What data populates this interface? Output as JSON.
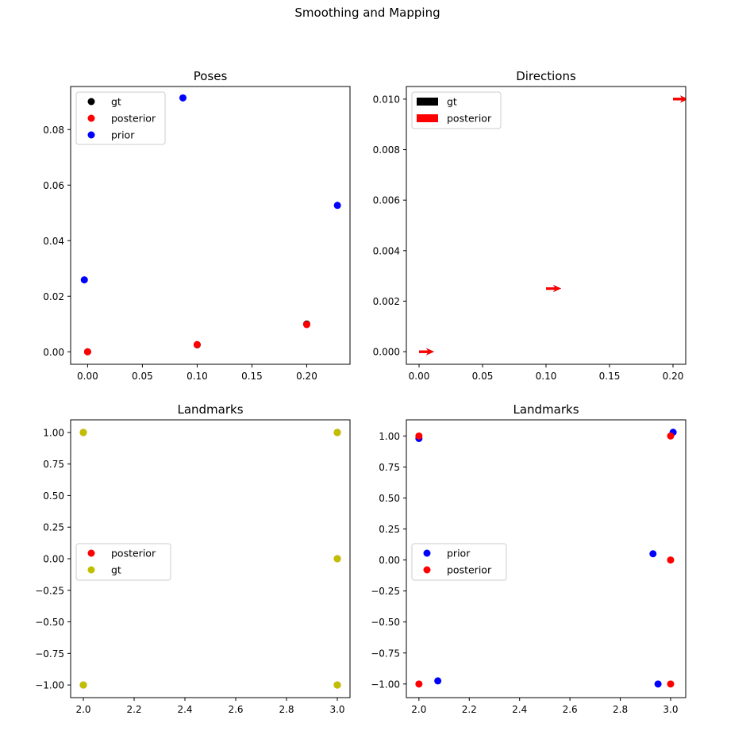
{
  "figure": {
    "suptitle": "Smoothing and Mapping"
  },
  "chart_data": [
    {
      "type": "scatter",
      "title": "Poses",
      "xlim": [
        -0.0155,
        0.2395
      ],
      "ylim": [
        -0.0045,
        0.0955
      ],
      "xticks": [
        0.0,
        0.05,
        0.1,
        0.15,
        0.2
      ],
      "xtick_labels": [
        "0.00",
        "0.05",
        "0.10",
        "0.15",
        "0.20"
      ],
      "yticks": [
        0.0,
        0.02,
        0.04,
        0.06,
        0.08
      ],
      "ytick_labels": [
        "0.00",
        "0.02",
        "0.04",
        "0.06",
        "0.08"
      ],
      "legend_position": "top-left",
      "series": [
        {
          "name": "gt",
          "color": "#000000",
          "points": [
            [
              0,
              0
            ],
            [
              0.1,
              0.0025
            ],
            [
              0.2,
              0.01
            ]
          ]
        },
        {
          "name": "posterior",
          "color": "#ff0000",
          "points": [
            [
              0,
              0
            ],
            [
              0.1,
              0.0026
            ],
            [
              0.2,
              0.0098
            ]
          ]
        },
        {
          "name": "prior",
          "color": "#0000ff",
          "points": [
            [
              -0.003,
              0.0259
            ],
            [
              0.087,
              0.0914
            ],
            [
              0.228,
              0.0527
            ]
          ]
        }
      ]
    },
    {
      "type": "quiver",
      "title": "Directions",
      "xlim": [
        -0.01,
        0.21
      ],
      "ylim": [
        -0.0005,
        0.0105
      ],
      "xticks": [
        0.0,
        0.05,
        0.1,
        0.15,
        0.2
      ],
      "xtick_labels": [
        "0.00",
        "0.05",
        "0.10",
        "0.15",
        "0.20"
      ],
      "yticks": [
        0.0,
        0.002,
        0.004,
        0.006,
        0.008,
        0.01
      ],
      "ytick_labels": [
        "0.000",
        "0.002",
        "0.004",
        "0.006",
        "0.008",
        "0.010"
      ],
      "legend_position": "top-left",
      "series": [
        {
          "name": "gt",
          "color": "#000000",
          "arrows": [
            [
              0,
              0,
              1,
              0
            ],
            [
              0.1,
              0.0025,
              1,
              0
            ],
            [
              0.2,
              0.01,
              1,
              0
            ]
          ]
        },
        {
          "name": "posterior",
          "color": "#ff0000",
          "arrows": [
            [
              0,
              0,
              1,
              0
            ],
            [
              0.1,
              0.0025,
              1,
              0
            ],
            [
              0.2,
              0.01,
              1,
              0
            ]
          ]
        }
      ]
    },
    {
      "type": "scatter",
      "title": "Landmarks",
      "xlim": [
        1.95,
        3.05
      ],
      "ylim": [
        -1.1,
        1.1
      ],
      "xticks": [
        2.0,
        2.2,
        2.4,
        2.6,
        2.8,
        3.0
      ],
      "xtick_labels": [
        "2.0",
        "2.2",
        "2.4",
        "2.6",
        "2.8",
        "3.0"
      ],
      "yticks": [
        -1.0,
        -0.75,
        -0.5,
        -0.25,
        0.0,
        0.25,
        0.5,
        0.75,
        1.0
      ],
      "ytick_labels": [
        "−1.00",
        "−0.75",
        "−0.50",
        "−0.25",
        "0.00",
        "0.25",
        "0.50",
        "0.75",
        "1.00"
      ],
      "legend_position": "center-left",
      "series": [
        {
          "name": "posterior",
          "color": "#ff0000",
          "points": [
            [
              2,
              1
            ],
            [
              3,
              1
            ],
            [
              3,
              0
            ],
            [
              2,
              -1
            ],
            [
              3,
              -1
            ]
          ]
        },
        {
          "name": "gt",
          "color": "#bfbf00",
          "points": [
            [
              2,
              1
            ],
            [
              3,
              1
            ],
            [
              3,
              0
            ],
            [
              2,
              -1
            ],
            [
              3,
              -1
            ]
          ]
        }
      ]
    },
    {
      "type": "scatter",
      "title": "Landmarks",
      "xlim": [
        1.95,
        3.06
      ],
      "ylim": [
        -1.11,
        1.13
      ],
      "xticks": [
        2.0,
        2.2,
        2.4,
        2.6,
        2.8,
        3.0
      ],
      "xtick_labels": [
        "2.0",
        "2.2",
        "2.4",
        "2.6",
        "2.8",
        "3.0"
      ],
      "yticks": [
        -1.0,
        -0.75,
        -0.5,
        -0.25,
        0.0,
        0.25,
        0.5,
        0.75,
        1.0
      ],
      "ytick_labels": [
        "−1.00",
        "−0.75",
        "−0.50",
        "−0.25",
        "0.00",
        "0.25",
        "0.50",
        "0.75",
        "1.00"
      ],
      "legend_position": "center-left",
      "series": [
        {
          "name": "prior",
          "color": "#0000ff",
          "points": [
            [
              2.0,
              0.98
            ],
            [
              3.01,
              1.03
            ],
            [
              2.93,
              0.05
            ],
            [
              2.075,
              -0.975
            ],
            [
              2.95,
              -1.0
            ]
          ]
        },
        {
          "name": "posterior",
          "color": "#ff0000",
          "points": [
            [
              2.0,
              1.0
            ],
            [
              3.0,
              1.0
            ],
            [
              3.0,
              0.0
            ],
            [
              2.0,
              -1.0
            ],
            [
              3.0,
              -1.0
            ]
          ]
        }
      ]
    }
  ]
}
